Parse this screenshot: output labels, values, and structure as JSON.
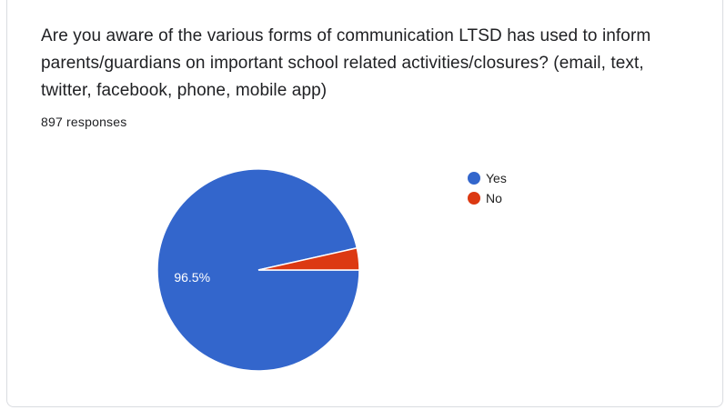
{
  "question": {
    "text": "Are you aware of the various forms of communication LTSD has used to inform parents/guardians on important school related activities/closures? (email, text, twitter, facebook, phone, mobile app)",
    "responses": "897 responses"
  },
  "chart_data": {
    "type": "pie",
    "title": "",
    "slices": [
      {
        "label": "Yes",
        "value": 96.5,
        "color": "#3366cc",
        "data_label": "96.5%"
      },
      {
        "label": "No",
        "value": 3.5,
        "color": "#dc3912",
        "data_label": ""
      }
    ],
    "legend_position": "right"
  }
}
